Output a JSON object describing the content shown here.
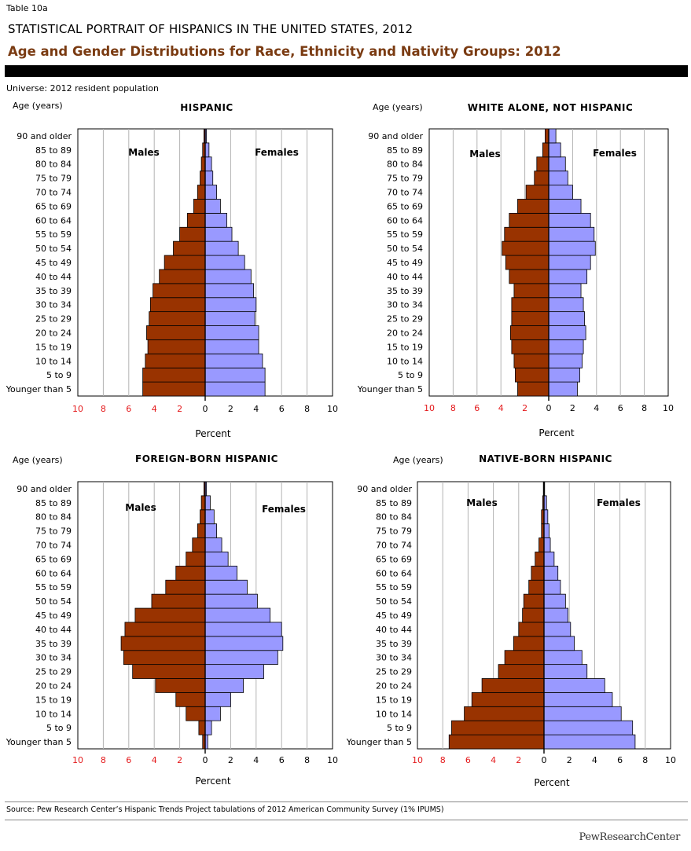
{
  "header": {
    "table_label": "Table 10a",
    "super_title": "STATISTICAL PORTRAIT OF HISPANICS IN THE UNITED STATES, 2012",
    "main_title": "Age and Gender Distributions for Race, Ethnicity and Nativity Groups: 2012",
    "universe": "Universe: 2012 resident population"
  },
  "footer": {
    "source": "Source: Pew Research Center’s Hispanic Trends Project tabulations of 2012 American Community Survey (1% IPUMS)",
    "brand": "PewResearchCenter"
  },
  "colors": {
    "males": "#993300",
    "females": "#9999ff",
    "tick_label_negative_side": "#e41a1c",
    "title_brown": "#7a3b12"
  },
  "chart_data": [
    {
      "type": "bar",
      "title": "HISPANIC",
      "y_axis_title": "Age (years)",
      "xlabel": "Percent",
      "xlim": [
        -10,
        10
      ],
      "xticks": [
        "10",
        "8",
        "6",
        "4",
        "2",
        "0",
        "2",
        "4",
        "6",
        "8",
        "10"
      ],
      "grid": true,
      "categories": [
        "Younger than 5",
        "5 to 9",
        "10 to 14",
        "15 to 19",
        "20 to 24",
        "25 to 29",
        "30 to 34",
        "35 to 39",
        "40 to 44",
        "45 to 49",
        "50 to 54",
        "55 to 59",
        "60 to 64",
        "65 to 69",
        "70 to 74",
        "75 to 79",
        "80 to 84",
        "85 to 89",
        "90 and older"
      ],
      "series": [
        {
          "name": "Males",
          "values": [
            4.9,
            4.9,
            4.7,
            4.5,
            4.6,
            4.4,
            4.3,
            4.1,
            3.6,
            3.2,
            2.5,
            2.0,
            1.4,
            0.9,
            0.6,
            0.4,
            0.3,
            0.2,
            0.1
          ]
        },
        {
          "name": "Females",
          "values": [
            4.7,
            4.7,
            4.5,
            4.2,
            4.2,
            3.9,
            4.0,
            3.8,
            3.6,
            3.1,
            2.6,
            2.1,
            1.7,
            1.2,
            0.9,
            0.6,
            0.5,
            0.3,
            0.1
          ]
        }
      ]
    },
    {
      "type": "bar",
      "title": "WHITE ALONE, NOT HISPANIC",
      "y_axis_title": "Age (years)",
      "xlabel": "Percent",
      "xlim": [
        -10,
        10
      ],
      "xticks": [
        "10",
        "8",
        "6",
        "4",
        "2",
        "0",
        "2",
        "4",
        "6",
        "8",
        "10"
      ],
      "grid": true,
      "categories": [
        "Younger than 5",
        "5 to 9",
        "10 to 14",
        "15 to 19",
        "20 to 24",
        "25 to 29",
        "30 to 34",
        "35 to 39",
        "40 to 44",
        "45 to 49",
        "50 to 54",
        "55 to 59",
        "60 to 64",
        "65 to 69",
        "70 to 74",
        "75 to 79",
        "80 to 84",
        "85 to 89",
        "90 and older"
      ],
      "series": [
        {
          "name": "Males",
          "values": [
            2.6,
            2.8,
            2.9,
            3.1,
            3.2,
            3.1,
            3.1,
            2.9,
            3.3,
            3.6,
            3.9,
            3.7,
            3.3,
            2.6,
            1.9,
            1.2,
            1.0,
            0.5,
            0.3
          ]
        },
        {
          "name": "Females",
          "values": [
            2.4,
            2.6,
            2.8,
            2.9,
            3.1,
            3.0,
            2.9,
            2.7,
            3.2,
            3.5,
            3.9,
            3.8,
            3.5,
            2.7,
            2.0,
            1.6,
            1.4,
            1.0,
            0.6
          ]
        }
      ]
    },
    {
      "type": "bar",
      "title": "FOREIGN-BORN HISPANIC",
      "y_axis_title": "Age (years)",
      "xlabel": "Percent",
      "xlim": [
        -10,
        10
      ],
      "xticks": [
        "10",
        "8",
        "6",
        "4",
        "2",
        "0",
        "2",
        "4",
        "6",
        "8",
        "10"
      ],
      "grid": true,
      "categories": [
        "Younger than 5",
        "5 to 9",
        "10 to 14",
        "15 to 19",
        "20 to 24",
        "25 to 29",
        "30 to 34",
        "35 to 39",
        "40 to 44",
        "45 to 49",
        "50 to 54",
        "55 to 59",
        "60 to 64",
        "65 to 69",
        "70 to 74",
        "75 to 79",
        "80 to 84",
        "85 to 89",
        "90 and older"
      ],
      "series": [
        {
          "name": "Males",
          "values": [
            0.2,
            0.5,
            1.5,
            2.3,
            3.9,
            5.7,
            6.4,
            6.6,
            6.3,
            5.5,
            4.2,
            3.1,
            2.3,
            1.5,
            1.0,
            0.6,
            0.4,
            0.3,
            0.1
          ]
        },
        {
          "name": "Females",
          "values": [
            0.2,
            0.5,
            1.2,
            2.0,
            3.0,
            4.6,
            5.7,
            6.1,
            6.0,
            5.1,
            4.1,
            3.3,
            2.5,
            1.8,
            1.3,
            0.9,
            0.7,
            0.4,
            0.1
          ]
        }
      ]
    },
    {
      "type": "bar",
      "title": "NATIVE-BORN HISPANIC",
      "y_axis_title": "Age (years)",
      "xlabel": "Percent",
      "xlim": [
        -10,
        10
      ],
      "xticks": [
        "10",
        "8",
        "6",
        "4",
        "2",
        "0",
        "2",
        "4",
        "6",
        "8",
        "10"
      ],
      "grid": true,
      "categories": [
        "Younger than 5",
        "5 to 9",
        "10 to 14",
        "15 to 19",
        "20 to 24",
        "25 to 29",
        "30 to 34",
        "35 to 39",
        "40 to 44",
        "45 to 49",
        "50 to 54",
        "55 to 59",
        "60 to 64",
        "65 to 69",
        "70 to 74",
        "75 to 79",
        "80 to 84",
        "85 to 89",
        "90 and older"
      ],
      "series": [
        {
          "name": "Males",
          "values": [
            7.5,
            7.3,
            6.3,
            5.7,
            4.9,
            3.6,
            3.1,
            2.4,
            2.0,
            1.7,
            1.6,
            1.2,
            1.0,
            0.7,
            0.4,
            0.2,
            0.2,
            0.1,
            0.05
          ]
        },
        {
          "name": "Females",
          "values": [
            7.2,
            7.0,
            6.1,
            5.4,
            4.8,
            3.4,
            3.0,
            2.4,
            2.1,
            1.9,
            1.7,
            1.3,
            1.1,
            0.8,
            0.5,
            0.4,
            0.3,
            0.2,
            0.05
          ]
        }
      ]
    }
  ]
}
